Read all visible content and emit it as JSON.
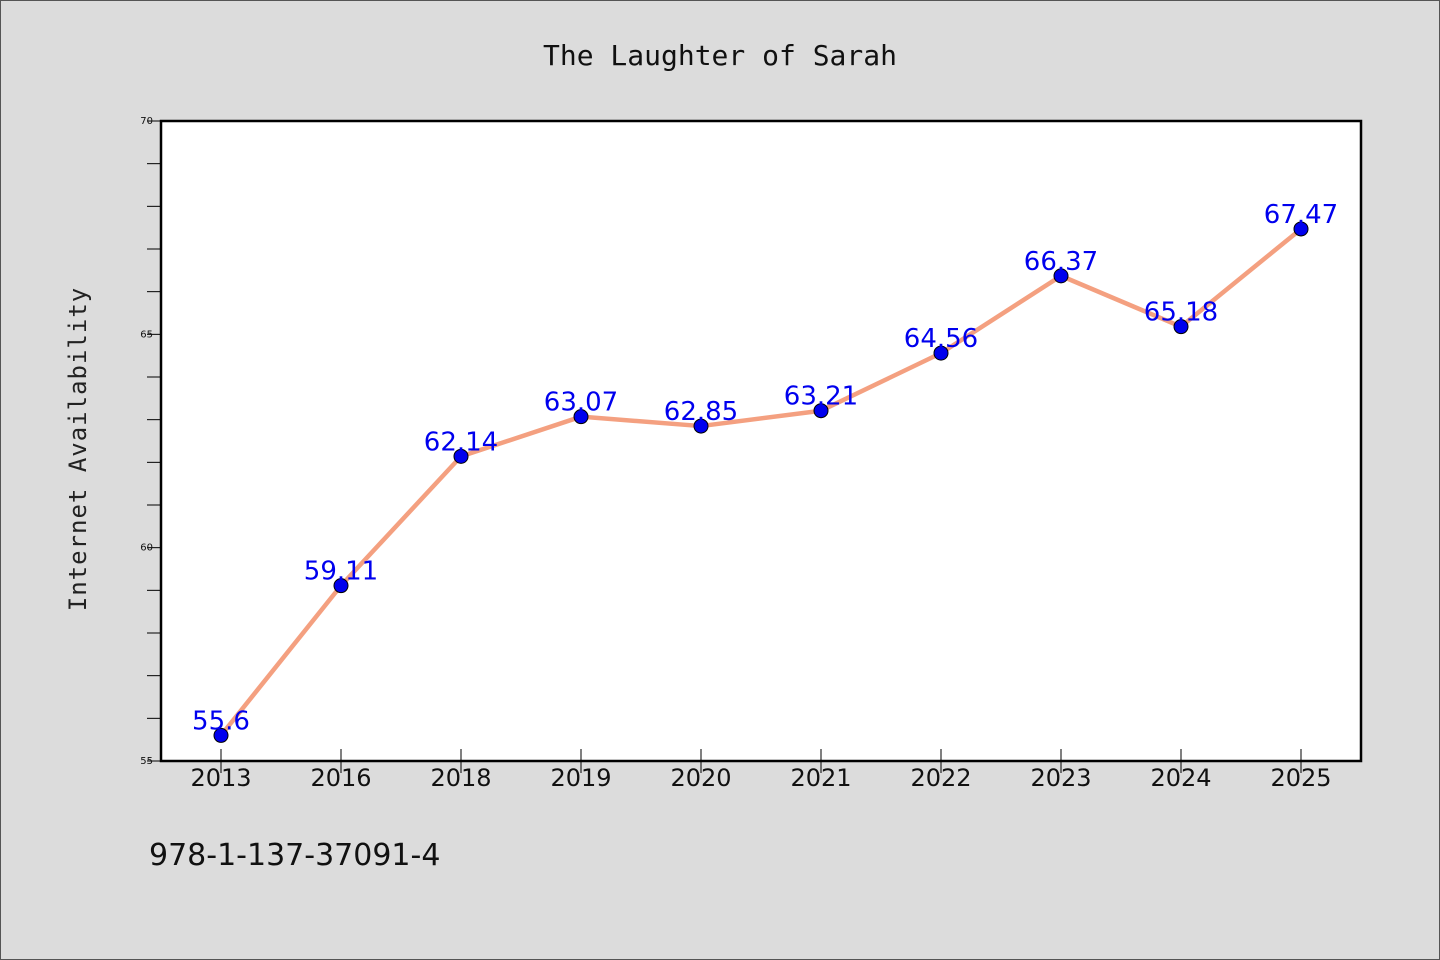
{
  "chart_data": {
    "type": "line",
    "title": "The Laughter of Sarah",
    "xlabel": "",
    "ylabel": "Internet Availability",
    "categories": [
      "2013",
      "2016",
      "2018",
      "2019",
      "2020",
      "2021",
      "2022",
      "2023",
      "2024",
      "2025"
    ],
    "series": [
      {
        "values": [
          55.6,
          59.11,
          62.14,
          63.07,
          62.85,
          63.21,
          64.56,
          66.37,
          65.18,
          67.47
        ],
        "data_labels": [
          "55.6",
          "59.11",
          "62.14",
          "63.07",
          "62.85",
          "63.21",
          "64.56",
          "66.37",
          "65.18",
          "67.47"
        ],
        "line_color": "#f4a080",
        "marker_color": "#0000ee",
        "label_color": "#0000ee"
      }
    ],
    "ylim": [
      55,
      70
    ],
    "yticks": [
      "55",
      "60",
      "65",
      "70"
    ],
    "grid": false,
    "legend": "none"
  },
  "footer": {
    "isbn": "978-1-137-37091-4"
  }
}
